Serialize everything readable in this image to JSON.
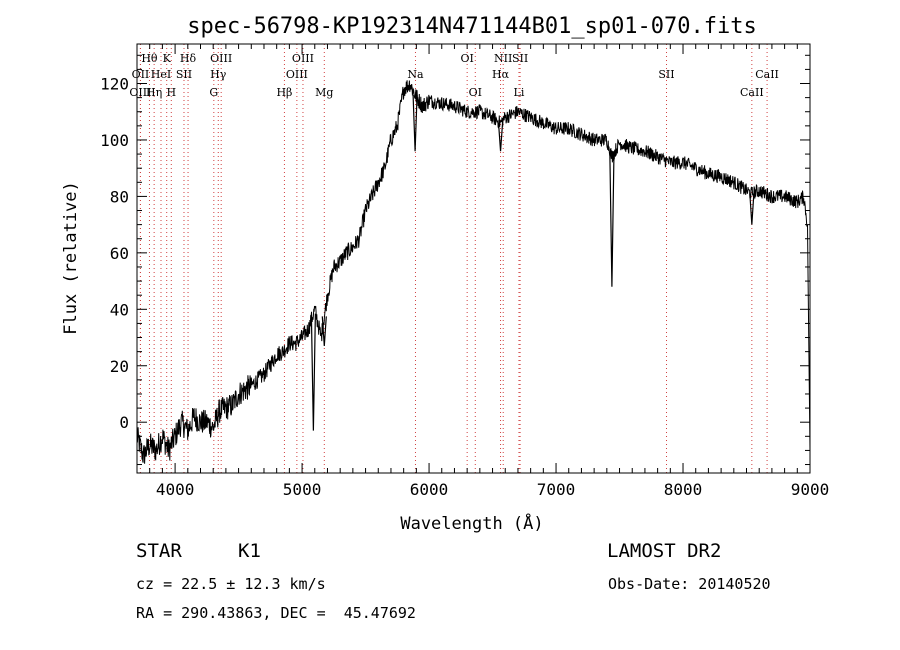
{
  "chart_data": {
    "type": "line",
    "title": "spec-56798-KP192314N471144B01_sp01-070.fits",
    "xlabel": "Wavelength (Å)",
    "ylabel": "Flux (relative)",
    "xlim": [
      3700,
      9000
    ],
    "ylim": [
      -18,
      134
    ],
    "xticks": [
      4000,
      5000,
      6000,
      7000,
      8000,
      9000
    ],
    "yticks": [
      0,
      20,
      40,
      60,
      80,
      100,
      120
    ],
    "grid": false,
    "line_color": "#000000",
    "marker_color": "#d04040",
    "series": [
      {
        "x": [
          3700,
          3750,
          3800,
          3850,
          3900,
          3950,
          4000,
          4050,
          4100,
          4150,
          4200,
          4250,
          4300,
          4350,
          4400,
          4450,
          4500,
          4600,
          4700,
          4800,
          4850,
          4900,
          4950,
          5000,
          5050,
          5100,
          5150,
          5200,
          5250,
          5300,
          5350,
          5400,
          5450,
          5500,
          5550,
          5600,
          5650,
          5700,
          5750,
          5800,
          5850,
          5890,
          5950,
          6000,
          6100,
          6200,
          6300,
          6400,
          6500,
          6563,
          6600,
          6700,
          6800,
          6900,
          7000,
          7100,
          7200,
          7300,
          7400,
          7440,
          7500,
          7600,
          7700,
          7800,
          7900,
          8000,
          8100,
          8200,
          8300,
          8400,
          8500,
          8540,
          8600,
          8700,
          8800,
          8900,
          8950,
          8980,
          9000
        ],
        "y": [
          -5,
          -12,
          -8,
          -10,
          -5,
          -10,
          -5,
          0,
          -3,
          2,
          0,
          0,
          -2,
          4,
          5,
          6,
          10,
          13,
          17,
          24,
          25,
          28,
          28,
          30,
          33,
          40,
          30,
          45,
          55,
          57,
          60,
          62,
          65,
          75,
          80,
          85,
          90,
          100,
          105,
          118,
          120,
          116,
          112,
          114,
          113,
          112,
          110,
          110,
          108,
          106,
          108,
          110,
          108,
          106,
          104,
          104,
          102,
          100,
          100,
          94,
          99,
          97,
          96,
          94,
          92,
          92,
          90,
          88,
          87,
          85,
          82,
          81,
          82,
          80,
          80,
          78,
          80,
          70,
          -10
        ]
      }
    ],
    "absorption_features": [
      {
        "x": 4227,
        "y": -2
      },
      {
        "x": 5089,
        "y": -3
      },
      {
        "x": 5175,
        "y": 27
      },
      {
        "x": 5890,
        "y": 96
      },
      {
        "x": 6563,
        "y": 96
      },
      {
        "x": 7440,
        "y": 48
      },
      {
        "x": 8542,
        "y": 70
      }
    ],
    "line_markers": [
      {
        "label": "Hθ",
        "x": 3798,
        "row": 1
      },
      {
        "label": "K",
        "x": 3934,
        "row": 1
      },
      {
        "label": "Hδ",
        "x": 4102,
        "row": 1
      },
      {
        "label": "OIII",
        "x": 4363,
        "row": 1
      },
      {
        "label": "OIII",
        "x": 5007,
        "row": 1
      },
      {
        "label": "OI",
        "x": 6300,
        "row": 1
      },
      {
        "label": "NII",
        "x": 6584,
        "row": 1
      },
      {
        "label": "SII",
        "x": 6717,
        "row": 1
      },
      {
        "label": "OII",
        "x": 3727,
        "row": 2
      },
      {
        "label": "HeI",
        "x": 3889,
        "row": 2
      },
      {
        "label": "SII",
        "x": 4070,
        "row": 2
      },
      {
        "label": "Hγ",
        "x": 4340,
        "row": 2
      },
      {
        "label": "OIII",
        "x": 4959,
        "row": 2
      },
      {
        "label": "Na",
        "x": 5893,
        "row": 2
      },
      {
        "label": "Hα",
        "x": 6563,
        "row": 2
      },
      {
        "label": "SII",
        "x": 7870,
        "row": 2
      },
      {
        "label": "CaII",
        "x": 8662,
        "row": 2
      },
      {
        "label": "OIII",
        "x": 3727,
        "row": 3
      },
      {
        "label": "Hη",
        "x": 3835,
        "row": 3
      },
      {
        "label": "H",
        "x": 3970,
        "row": 3
      },
      {
        "label": "G",
        "x": 4305,
        "row": 3
      },
      {
        "label": "Hβ",
        "x": 4861,
        "row": 3
      },
      {
        "label": "Mg",
        "x": 5175,
        "row": 3
      },
      {
        "label": "OI",
        "x": 6364,
        "row": 3
      },
      {
        "label": "Li",
        "x": 6708,
        "row": 3
      },
      {
        "label": "CaII",
        "x": 8542,
        "row": 3
      }
    ]
  },
  "info": {
    "object_class": "STAR",
    "subclass": "K1",
    "survey": "LAMOST DR2",
    "cz": "cz = 22.5 ± 12.3 km/s",
    "obs_date": "Obs-Date: 20140520",
    "radec": "RA = 290.43863, DEC =  45.47692"
  }
}
